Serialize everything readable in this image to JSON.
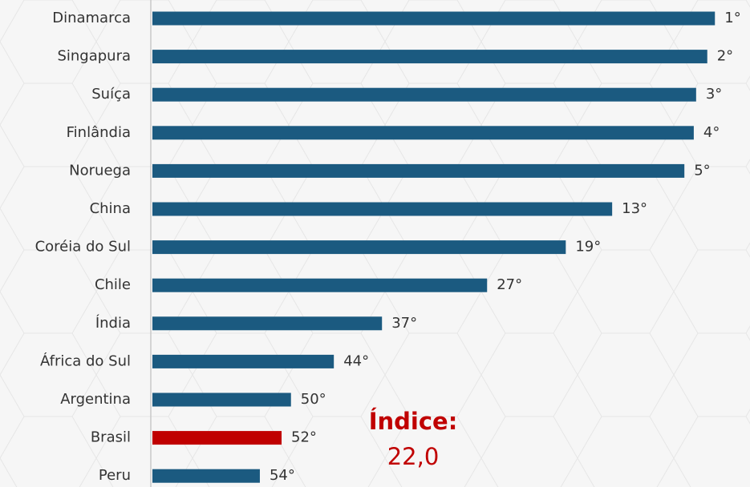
{
  "chart_data": {
    "type": "bar",
    "orientation": "horizontal",
    "categories": [
      "Dinamarca",
      "Singapura",
      "Suíça",
      "Finlândia",
      "Noruega",
      "China",
      "Coréia do Sul",
      "Chile",
      "Índia",
      "África do Sul",
      "Argentina",
      "Brasil",
      "Peru"
    ],
    "values": [
      95.8,
      94.5,
      92.6,
      92.2,
      90.6,
      78.3,
      70.4,
      57.0,
      39.1,
      30.9,
      23.6,
      22.0,
      18.3
    ],
    "ranks": [
      "1°",
      "2°",
      "3°",
      "4°",
      "5°",
      "13°",
      "19°",
      "27°",
      "37°",
      "44°",
      "50°",
      "52°",
      "54°"
    ],
    "colors": [
      "#1b5a80",
      "#1b5a80",
      "#1b5a80",
      "#1b5a80",
      "#1b5a80",
      "#1b5a80",
      "#1b5a80",
      "#1b5a80",
      "#1b5a80",
      "#1b5a80",
      "#1b5a80",
      "#c00000",
      "#1b5a80"
    ],
    "label_colors": [
      "#333333",
      "#333333",
      "#333333",
      "#333333",
      "#333333",
      "#333333",
      "#333333",
      "#333333",
      "#333333",
      "#333333",
      "#333333",
      "#c00000",
      "#333333"
    ],
    "annotations": [
      "Índice:",
      "22,0"
    ]
  }
}
